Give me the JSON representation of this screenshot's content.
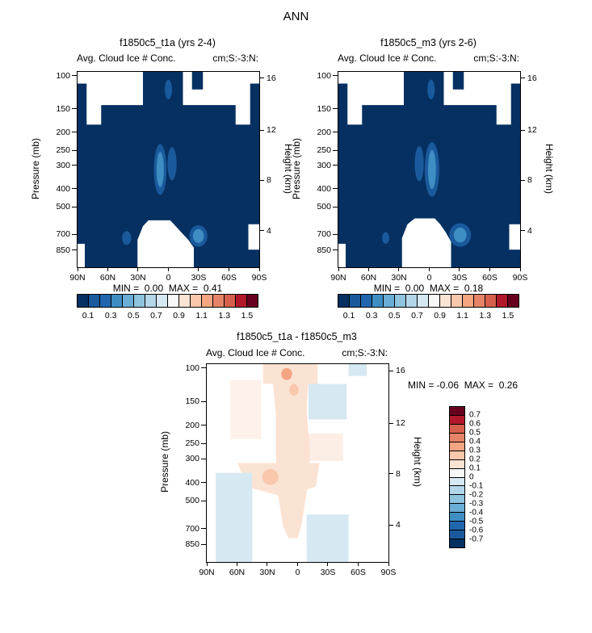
{
  "page": {
    "title": "ANN"
  },
  "chart_data": [
    {
      "type": "heatmap",
      "panel": "top-left",
      "title": "f1850c5_t1a (yrs 2-4)",
      "subtitle_left": "Avg. Cloud Ice # Conc.",
      "subtitle_right": "cm;S:-3:N:",
      "ylabel_left": "Pressure (mb)",
      "ylabel_right": "Height (km)",
      "y_ticks_left": [
        "100",
        "150",
        "200",
        "250",
        "300",
        "400",
        "500",
        "700",
        "850"
      ],
      "y_ticks_right": [
        "16",
        "12",
        "8",
        "4"
      ],
      "x_ticks": [
        "90N",
        "60N",
        "30N",
        "0",
        "30S",
        "60S",
        "90S"
      ],
      "y_scale": "log pressure 100-1000 mb",
      "min": 0.0,
      "max": 0.41,
      "stats": "MIN =  0.00  MAX =  0.41",
      "colorbar": {
        "orientation": "horizontal",
        "labels": [
          "0.1",
          "0.3",
          "0.5",
          "0.7",
          "0.9",
          "1.1",
          "1.3",
          "1.5"
        ],
        "levels": [
          0.1,
          0.2,
          0.3,
          0.4,
          0.5,
          0.6,
          0.7,
          0.8,
          0.9,
          1.0,
          1.1,
          1.2,
          1.3,
          1.4,
          1.5
        ],
        "colors": [
          "#053061",
          "#1a5a9c",
          "#2166ac",
          "#3e8ec4",
          "#6aaed6",
          "#8ec4de",
          "#b4d6e9",
          "#d6e8f1",
          "#f7f7f7",
          "#fbe3d4",
          "#f9c7ab",
          "#f4a582",
          "#e58368",
          "#d6604d",
          "#b2182b",
          "#67001f"
        ]
      },
      "field_notes": "Nearly uniform lowest contour (dark blue < 0.1); lighter-blue maxima in tropical mid-troposphere (250-450 mb) and near 700 mb; white = missing data at high-latitude upper levels and below ~700 mb in the tropics."
    },
    {
      "type": "heatmap",
      "panel": "top-right",
      "title": "f1850c5_m3 (yrs 2-6)",
      "subtitle_left": "Avg. Cloud Ice # Conc.",
      "subtitle_right": "cm;S:-3:N:",
      "ylabel_left": "Pressure (mb)",
      "ylabel_right": "Height (km)",
      "y_ticks_left": [
        "100",
        "150",
        "200",
        "250",
        "300",
        "400",
        "500",
        "700",
        "850"
      ],
      "y_ticks_right": [
        "16",
        "12",
        "8",
        "4"
      ],
      "x_ticks": [
        "90N",
        "60N",
        "30N",
        "0",
        "30S",
        "60S",
        "90S"
      ],
      "y_scale": "log pressure 100-1000 mb",
      "min": 0.0,
      "max": 0.18,
      "stats": "MIN =  0.00  MAX =  0.18",
      "colorbar": {
        "orientation": "horizontal",
        "labels": [
          "0.1",
          "0.3",
          "0.5",
          "0.7",
          "0.9",
          "1.1",
          "1.3",
          "1.5"
        ],
        "levels": [
          0.1,
          0.2,
          0.3,
          0.4,
          0.5,
          0.6,
          0.7,
          0.8,
          0.9,
          1.0,
          1.1,
          1.2,
          1.3,
          1.4,
          1.5
        ],
        "colors": [
          "#053061",
          "#1a5a9c",
          "#2166ac",
          "#3e8ec4",
          "#6aaed6",
          "#8ec4de",
          "#b4d6e9",
          "#d6e8f1",
          "#f7f7f7",
          "#fbe3d4",
          "#f9c7ab",
          "#f4a582",
          "#e58368",
          "#d6604d",
          "#b2182b",
          "#67001f"
        ]
      },
      "field_notes": "Same layout as left panel; uniform dark-blue field with lighter-blue maxima near the tropical mid-troposphere and ~700 mb southern tropics."
    },
    {
      "type": "heatmap",
      "panel": "bottom-difference",
      "title": "f1850c5_t1a - f1850c5_m3",
      "subtitle_left": "Avg. Cloud Ice # Conc.",
      "subtitle_right": "cm;S:-3:N:",
      "ylabel_left": "Pressure (mb)",
      "ylabel_right": "Height (km)",
      "y_ticks_left": [
        "100",
        "150",
        "200",
        "250",
        "300",
        "400",
        "500",
        "700",
        "850"
      ],
      "y_ticks_right": [
        "16",
        "12",
        "8",
        "4"
      ],
      "x_ticks": [
        "90N",
        "60N",
        "30N",
        "0",
        "30S",
        "60S",
        "90S"
      ],
      "y_scale": "log pressure 100-1000 mb",
      "min": -0.06,
      "max": 0.26,
      "stats": "MIN = -0.06  MAX =  0.26",
      "colorbar": {
        "orientation": "vertical",
        "labels": [
          "0.7",
          "0.6",
          "0.5",
          "0.4",
          "0.3",
          "0.2",
          "0.1",
          "0",
          "-0.1",
          "-0.2",
          "-0.3",
          "-0.4",
          "-0.5",
          "-0.6",
          "-0.7"
        ],
        "levels": [
          0.7,
          0.6,
          0.5,
          0.4,
          0.3,
          0.2,
          0.1,
          0,
          -0.1,
          -0.2,
          -0.3,
          -0.4,
          -0.5,
          -0.6,
          -0.7
        ],
        "colors": [
          "#67001f",
          "#b2182b",
          "#d6604d",
          "#e58368",
          "#f4a582",
          "#f9c7ab",
          "#fbe3d4",
          "#f7f7f7",
          "#d6e8f1",
          "#b4d6e9",
          "#8ec4de",
          "#6aaed6",
          "#3e8ec4",
          "#2166ac",
          "#1a5a9c",
          "#053061"
        ]
      },
      "field_notes": "Mostly near-zero (white); weak positive (pale orange) band in tropical column, weak negative (pale blue) patches in southern upper levels, lower-left and lower-right; small stronger positive spots near tropopause."
    }
  ]
}
